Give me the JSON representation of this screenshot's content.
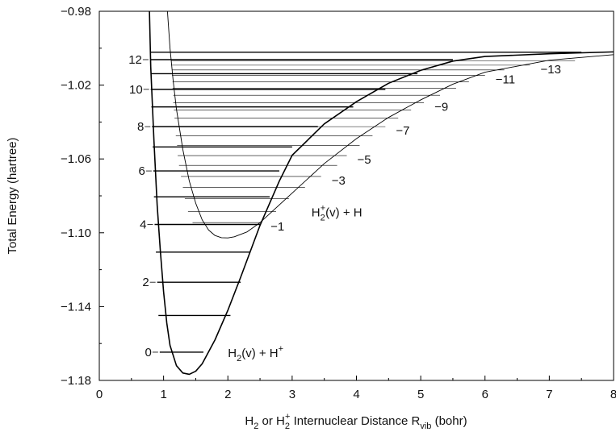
{
  "chart_data": {
    "type": "line",
    "xlabel_parts": [
      "H",
      "2",
      " or H",
      "2",
      "+",
      " Internuclear Distance R",
      "vib",
      " (bohr)"
    ],
    "ylabel": "Total Energy (hartree)",
    "xlim": [
      0,
      8
    ],
    "ylim": [
      -1.18,
      -0.98
    ],
    "x_ticks": [
      "0",
      "1",
      "2",
      "3",
      "4",
      "5",
      "6",
      "7",
      "8"
    ],
    "y_ticks": [
      "-0.98",
      "-1.02",
      "-1.06",
      "-1.10",
      "-1.14",
      "-1.18"
    ],
    "y_tick_values": [
      -0.98,
      -1.02,
      -1.06,
      -1.1,
      -1.14,
      -1.18
    ],
    "grid": false,
    "curve_color": "#000000",
    "series": [
      {
        "label_parts": [
          "H",
          "2",
          "(v) + H",
          "+"
        ],
        "label_anchor": [
          2.0,
          -1.1648
        ],
        "curve_points": [
          [
            0.78,
            -0.98
          ],
          [
            0.8,
            -1.01
          ],
          [
            0.85,
            -1.05
          ],
          [
            0.9,
            -1.085
          ],
          [
            0.95,
            -1.11
          ],
          [
            1.0,
            -1.132
          ],
          [
            1.05,
            -1.149
          ],
          [
            1.1,
            -1.161
          ],
          [
            1.2,
            -1.172
          ],
          [
            1.3,
            -1.176
          ],
          [
            1.4,
            -1.1767
          ],
          [
            1.5,
            -1.175
          ],
          [
            1.6,
            -1.171
          ],
          [
            1.8,
            -1.158
          ],
          [
            2.0,
            -1.142
          ],
          [
            2.2,
            -1.124
          ],
          [
            2.5,
            -1.096
          ],
          [
            2.8,
            -1.072
          ],
          [
            3.0,
            -1.058
          ],
          [
            3.5,
            -1.041
          ],
          [
            4.0,
            -1.029
          ],
          [
            4.5,
            -1.019
          ],
          [
            5.0,
            -1.012
          ],
          [
            5.5,
            -1.007
          ],
          [
            6.0,
            -1.0045
          ],
          [
            7.0,
            -1.003
          ],
          [
            8.0,
            -1.002
          ]
        ],
        "levels": [
          {
            "v": 0,
            "energy": -1.1647,
            "r_min": 0.94,
            "r_max": 1.62
          },
          {
            "v": 1,
            "energy": -1.1448,
            "r_min": 0.92,
            "r_max": 2.04
          },
          {
            "v": 2,
            "energy": -1.1268,
            "r_min": 0.9,
            "r_max": 2.2
          },
          {
            "v": 3,
            "energy": -1.1105,
            "r_min": 0.88,
            "r_max": 2.35
          },
          {
            "v": 4,
            "energy": -1.0955,
            "r_min": 0.86,
            "r_max": 2.5
          },
          {
            "v": 5,
            "energy": -1.0805,
            "r_min": 0.85,
            "r_max": 2.65
          },
          {
            "v": 6,
            "energy": -1.0665,
            "r_min": 0.84,
            "r_max": 2.8
          },
          {
            "v": 7,
            "energy": -1.0535,
            "r_min": 0.83,
            "r_max": 3.0
          },
          {
            "v": 8,
            "energy": -1.0425,
            "r_min": 0.82,
            "r_max": 3.4
          },
          {
            "v": 9,
            "energy": -1.0318,
            "r_min": 0.81,
            "r_max": 3.95
          },
          {
            "v": 10,
            "energy": -1.0223,
            "r_min": 0.8,
            "r_max": 4.45
          },
          {
            "v": 11,
            "energy": -1.0138,
            "r_min": 0.8,
            "r_max": 4.95
          },
          {
            "v": 12,
            "energy": -1.0062,
            "r_min": 0.79,
            "r_max": 5.5
          },
          {
            "v": 13,
            "energy": -1.0022,
            "r_min": 0.79,
            "r_max": 7.5
          }
        ],
        "level_labels": [
          {
            "text": "0",
            "v": 0
          },
          {
            "text": "2",
            "v": 2
          },
          {
            "text": "4",
            "v": 4
          },
          {
            "text": "6",
            "v": 6
          },
          {
            "text": "8",
            "v": 8
          },
          {
            "text": "10",
            "v": 10
          },
          {
            "text": "12",
            "v": 12
          }
        ]
      },
      {
        "label_parts": [
          "H",
          "2",
          "+",
          "(v) + H"
        ],
        "label_anchor": [
          3.3,
          -1.0885
        ],
        "curve_points": [
          [
            1.06,
            -0.98
          ],
          [
            1.1,
            -1.0
          ],
          [
            1.15,
            -1.018
          ],
          [
            1.2,
            -1.033
          ],
          [
            1.3,
            -1.055
          ],
          [
            1.4,
            -1.072
          ],
          [
            1.5,
            -1.084
          ],
          [
            1.6,
            -1.093
          ],
          [
            1.7,
            -1.0985
          ],
          [
            1.8,
            -1.1015
          ],
          [
            1.9,
            -1.1027
          ],
          [
            2.0,
            -1.1028
          ],
          [
            2.1,
            -1.1022
          ],
          [
            2.3,
            -1.0995
          ],
          [
            2.5,
            -1.0945
          ],
          [
            3.0,
            -1.0785
          ],
          [
            3.5,
            -1.0625
          ],
          [
            4.0,
            -1.049
          ],
          [
            4.5,
            -1.0375
          ],
          [
            5.0,
            -1.028
          ],
          [
            5.5,
            -1.0195
          ],
          [
            6.0,
            -1.013
          ],
          [
            7.0,
            -1.0065
          ],
          [
            8.0,
            -1.0035
          ]
        ],
        "levels": [
          {
            "v": 0,
            "energy": -1.0945,
            "r_min": 1.45,
            "r_max": 2.5
          },
          {
            "v": 1,
            "energy": -1.0885,
            "r_min": 1.38,
            "r_max": 2.75
          },
          {
            "v": 2,
            "energy": -1.0815,
            "r_min": 1.33,
            "r_max": 2.95
          },
          {
            "v": 3,
            "energy": -1.0755,
            "r_min": 1.3,
            "r_max": 3.2
          },
          {
            "v": 4,
            "energy": -1.0695,
            "r_min": 1.27,
            "r_max": 3.45
          },
          {
            "v": 5,
            "energy": -1.0635,
            "r_min": 1.24,
            "r_max": 3.7
          },
          {
            "v": 6,
            "energy": -1.0582,
            "r_min": 1.22,
            "r_max": 3.85
          },
          {
            "v": 7,
            "energy": -1.0528,
            "r_min": 1.21,
            "r_max": 4.05
          },
          {
            "v": 8,
            "energy": -1.0475,
            "r_min": 1.19,
            "r_max": 4.25
          },
          {
            "v": 9,
            "energy": -1.0425,
            "r_min": 1.18,
            "r_max": 4.45
          },
          {
            "v": 10,
            "energy": -1.0378,
            "r_min": 1.17,
            "r_max": 4.65
          },
          {
            "v": 11,
            "energy": -1.0335,
            "r_min": 1.16,
            "r_max": 4.85
          },
          {
            "v": 12,
            "energy": -1.0295,
            "r_min": 1.15,
            "r_max": 5.05
          },
          {
            "v": 13,
            "energy": -1.0255,
            "r_min": 1.15,
            "r_max": 5.3
          },
          {
            "v": 14,
            "energy": -1.0218,
            "r_min": 1.14,
            "r_max": 5.55
          },
          {
            "v": 15,
            "energy": -1.0183,
            "r_min": 1.14,
            "r_max": 5.75
          },
          {
            "v": 16,
            "energy": -1.0148,
            "r_min": 1.13,
            "r_max": 6.0
          },
          {
            "v": 17,
            "energy": -1.0118,
            "r_min": 1.13,
            "r_max": 6.3
          },
          {
            "v": 18,
            "energy": -1.0092,
            "r_min": 1.12,
            "r_max": 6.7
          },
          {
            "v": 19,
            "energy": -1.0068,
            "r_min": 1.12,
            "r_max": 7.4
          }
        ],
        "level_labels": [
          {
            "text": "-1",
            "v": 0
          },
          {
            "text": "-3",
            "v": 4
          },
          {
            "text": "-5",
            "v": 6
          },
          {
            "text": "-7",
            "v": 9
          },
          {
            "text": "-9",
            "v": 12
          },
          {
            "text": "-11",
            "v": 16
          },
          {
            "text": "-13",
            "v": 18
          }
        ]
      }
    ]
  }
}
